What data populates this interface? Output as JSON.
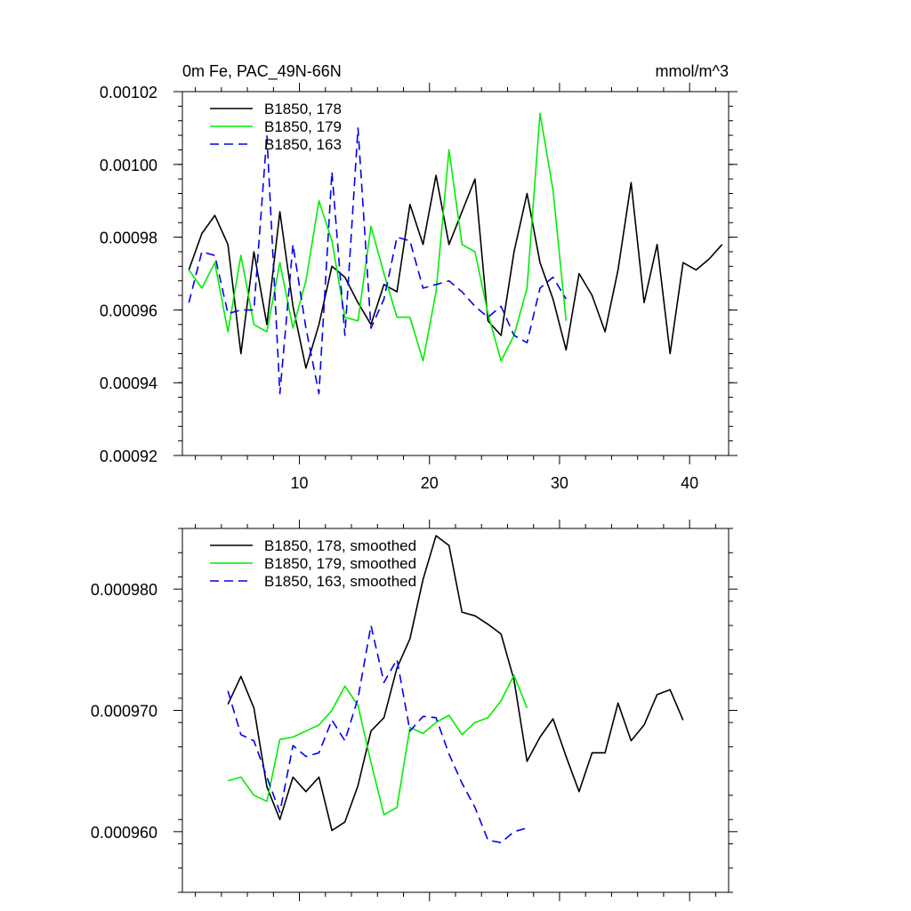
{
  "chart_data": [
    {
      "type": "line",
      "title": "0m Fe, PAC_49N-66N",
      "units": "mmol/m^3",
      "xlim": [
        1,
        43
      ],
      "ylim": [
        0.00092,
        0.00102
      ],
      "xticks": [
        10,
        20,
        30,
        40
      ],
      "xtick_labels": [
        "10",
        "20",
        "30",
        "40"
      ],
      "yticks": [
        0.00092,
        0.00094,
        0.00096,
        0.00098,
        0.001,
        0.00102
      ],
      "ytick_labels": [
        "0.00092",
        "0.00094",
        "0.00096",
        "0.00098",
        "0.00100",
        "0.00102"
      ],
      "series": [
        {
          "name": "B1850, 178",
          "color": "#000000",
          "dash": "solid",
          "x": [
            1.5,
            2.5,
            3.5,
            4.5,
            5.5,
            6.5,
            7.5,
            8.5,
            9.5,
            10.5,
            11.5,
            12.5,
            13.5,
            14.5,
            15.5,
            16.5,
            17.5,
            18.5,
            19.5,
            20.5,
            21.5,
            22.5,
            23.5,
            24.5,
            25.5,
            26.5,
            27.5,
            28.5,
            29.5,
            30.5,
            31.5,
            32.5,
            33.5,
            34.5,
            35.5,
            36.5,
            37.5,
            38.5,
            39.5,
            40.5,
            41.5,
            42.5
          ],
          "values": [
            0.000971,
            0.000981,
            0.000986,
            0.000978,
            0.000948,
            0.000976,
            0.000956,
            0.000987,
            0.000961,
            0.000944,
            0.000956,
            0.000972,
            0.000969,
            0.000962,
            0.000956,
            0.000967,
            0.000965,
            0.000989,
            0.000978,
            0.000997,
            0.000978,
            0.000987,
            0.000996,
            0.000957,
            0.000953,
            0.000976,
            0.000992,
            0.000973,
            0.000963,
            0.000949,
            0.00097,
            0.000964,
            0.000954,
            0.000971,
            0.000995,
            0.000962,
            0.000978,
            0.000948,
            0.000973,
            0.000971,
            0.000974,
            0.000978
          ]
        },
        {
          "name": "B1850, 179",
          "color": "#00ee00",
          "dash": "solid",
          "x": [
            1.5,
            2.5,
            3.5,
            4.5,
            5.5,
            6.5,
            7.5,
            8.5,
            9.5,
            10.5,
            11.5,
            12.5,
            13.5,
            14.5,
            15.5,
            16.5,
            17.5,
            18.5,
            19.5,
            20.5,
            21.5,
            22.5,
            23.5,
            24.5,
            25.5,
            26.5,
            27.5,
            28.5,
            29.5,
            30.5
          ],
          "values": [
            0.000971,
            0.000966,
            0.000973,
            0.000954,
            0.000975,
            0.000956,
            0.000954,
            0.000973,
            0.000955,
            0.000968,
            0.00099,
            0.000979,
            0.000958,
            0.000957,
            0.000983,
            0.00097,
            0.000958,
            0.000958,
            0.000946,
            0.000965,
            0.001004,
            0.000978,
            0.000976,
            0.000959,
            0.000946,
            0.000953,
            0.000966,
            0.001014,
            0.000993,
            0.000957
          ]
        },
        {
          "name": "B1850, 163",
          "color": "#0000ee",
          "dash": "dashed",
          "x": [
            1.5,
            2.5,
            3.5,
            4.5,
            5.5,
            6.5,
            7.5,
            8.5,
            9.5,
            10.5,
            11.5,
            12.5,
            13.5,
            14.5,
            15.5,
            16.5,
            17.5,
            18.5,
            19.5,
            20.5,
            21.5,
            22.5,
            23.5,
            24.5,
            25.5,
            26.5,
            27.5,
            28.5,
            29.5,
            30.5
          ],
          "values": [
            0.000962,
            0.000976,
            0.000975,
            0.000959,
            0.00096,
            0.00096,
            0.001008,
            0.000937,
            0.000978,
            0.000955,
            0.000937,
            0.000998,
            0.000953,
            0.00101,
            0.000955,
            0.000963,
            0.00098,
            0.000979,
            0.000966,
            0.000967,
            0.000968,
            0.000965,
            0.000961,
            0.000958,
            0.000961,
            0.000953,
            0.000951,
            0.000966,
            0.000969,
            0.000963
          ]
        }
      ]
    },
    {
      "type": "line",
      "title": "",
      "xlim": [
        1,
        43
      ],
      "ylim": [
        0.000955,
        0.000985
      ],
      "xticks": [
        10,
        20,
        30,
        40
      ],
      "xtick_labels": [],
      "yticks": [
        0.00096,
        0.00097,
        0.00098
      ],
      "ytick_labels": [
        "0.000960",
        "0.000970",
        "0.000980"
      ],
      "series": [
        {
          "name": "B1850, 178, smoothed",
          "color": "#000000",
          "dash": "solid",
          "x": [
            4.5,
            5.5,
            6.5,
            7.5,
            8.5,
            9.5,
            10.5,
            11.5,
            12.5,
            13.5,
            14.5,
            15.5,
            16.5,
            17.5,
            18.5,
            19.5,
            20.5,
            21.5,
            22.5,
            23.5,
            24.5,
            25.5,
            26.5,
            27.5,
            28.5,
            29.5,
            30.5,
            31.5,
            32.5,
            33.5,
            34.5,
            35.5,
            36.5,
            37.5,
            38.5,
            39.5
          ],
          "values": [
            0.0009705,
            0.0009728,
            0.0009702,
            0.0009637,
            0.000961,
            0.0009645,
            0.0009633,
            0.0009645,
            0.0009601,
            0.0009608,
            0.0009638,
            0.0009683,
            0.0009694,
            0.0009735,
            0.0009759,
            0.0009808,
            0.0009844,
            0.0009836,
            0.0009781,
            0.0009778,
            0.0009771,
            0.0009763,
            0.0009725,
            0.0009658,
            0.0009678,
            0.0009693,
            0.0009662,
            0.0009633,
            0.0009665,
            0.0009665,
            0.0009706,
            0.0009675,
            0.0009688,
            0.0009713,
            0.0009717,
            0.0009692
          ]
        },
        {
          "name": "B1850, 179, smoothed",
          "color": "#00ee00",
          "dash": "solid",
          "x": [
            4.5,
            5.5,
            6.5,
            7.5,
            8.5,
            9.5,
            10.5,
            11.5,
            12.5,
            13.5,
            14.5,
            15.5,
            16.5,
            17.5,
            18.5,
            19.5,
            20.5,
            21.5,
            22.5,
            23.5,
            24.5,
            25.5,
            26.5,
            27.5
          ],
          "values": [
            0.0009642,
            0.0009645,
            0.000963,
            0.0009625,
            0.0009676,
            0.0009678,
            0.0009683,
            0.0009688,
            0.00097,
            0.000972,
            0.0009704,
            0.0009657,
            0.0009614,
            0.000962,
            0.0009686,
            0.0009681,
            0.000969,
            0.0009696,
            0.000968,
            0.000969,
            0.0009694,
            0.0009708,
            0.0009729,
            0.0009702
          ]
        },
        {
          "name": "B1850, 163, smoothed",
          "color": "#0000ee",
          "dash": "dashed",
          "x": [
            4.5,
            5.5,
            6.5,
            7.5,
            8.5,
            9.5,
            10.5,
            11.5,
            12.5,
            13.5,
            14.5,
            15.5,
            16.5,
            17.5,
            18.5,
            19.5,
            20.5,
            21.5,
            22.5,
            23.5,
            24.5,
            25.5,
            26.5,
            27.5
          ],
          "values": [
            0.0009716,
            0.000968,
            0.0009675,
            0.0009645,
            0.0009616,
            0.0009671,
            0.0009662,
            0.0009665,
            0.0009692,
            0.0009675,
            0.000971,
            0.000977,
            0.0009723,
            0.0009742,
            0.0009683,
            0.0009695,
            0.0009694,
            0.0009664,
            0.000964,
            0.000962,
            0.0009593,
            0.0009591,
            0.00096,
            0.0009603
          ]
        }
      ]
    }
  ]
}
